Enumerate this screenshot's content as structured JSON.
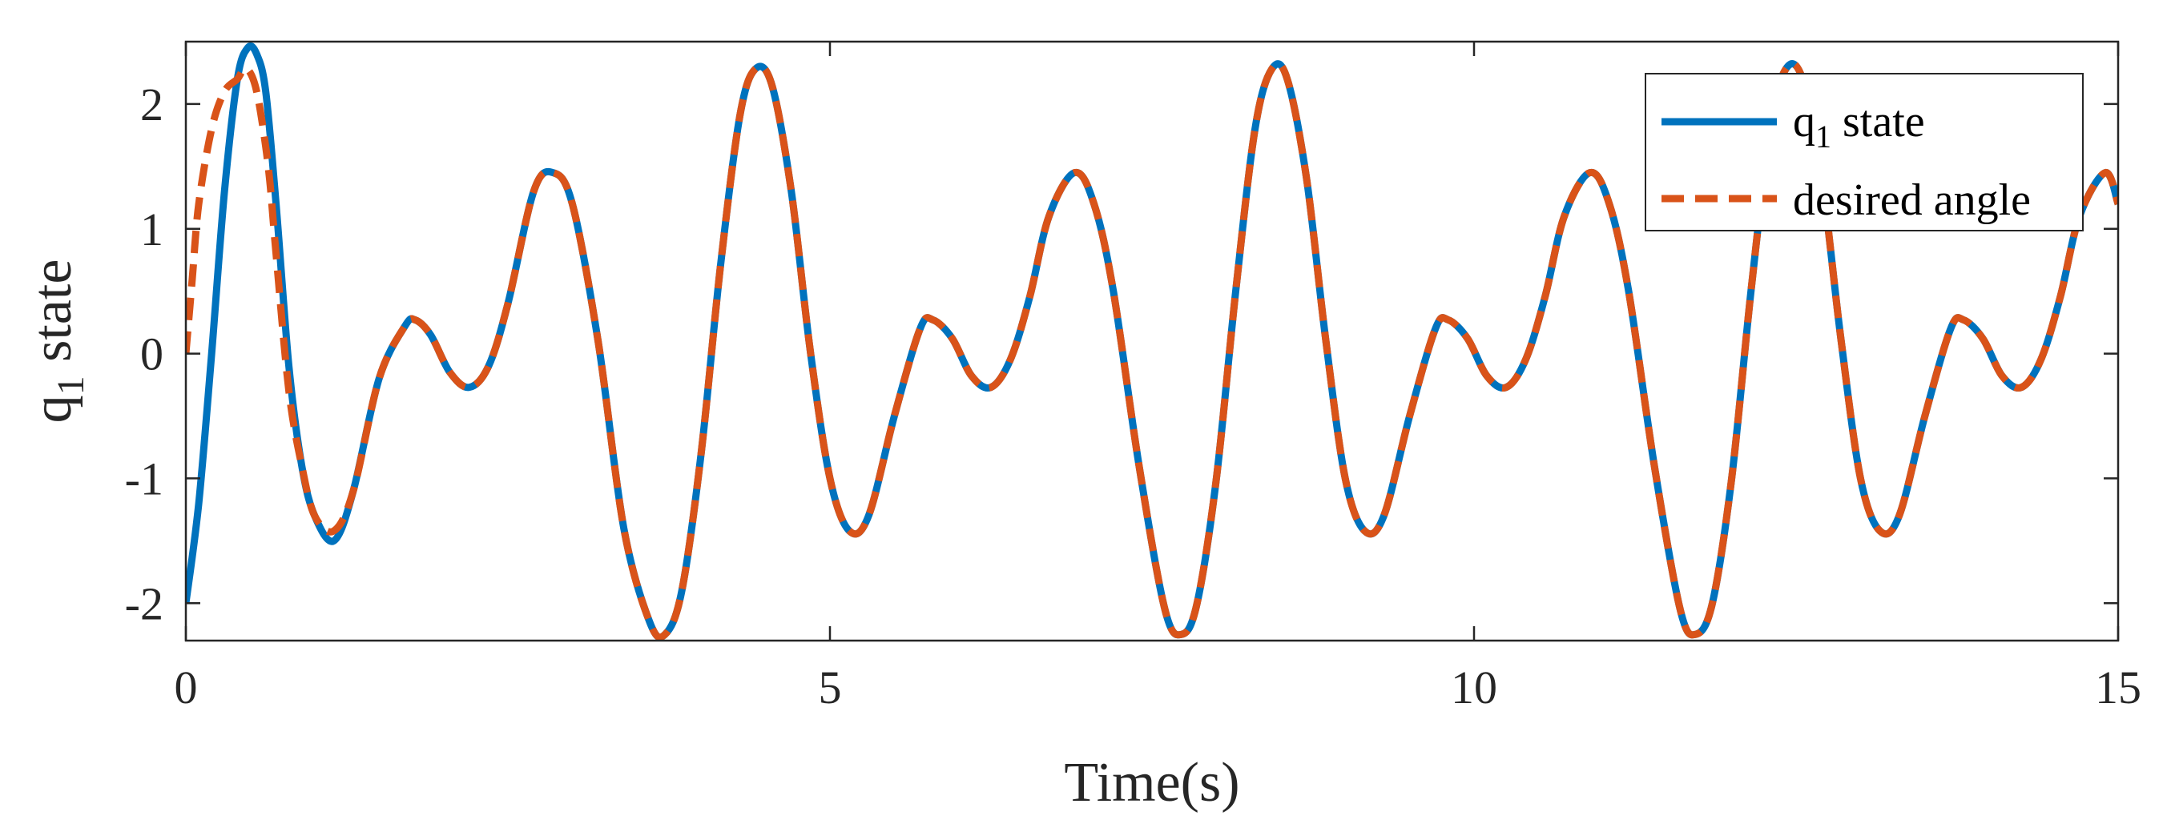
{
  "chart_data": {
    "type": "line",
    "xlabel": "Time(s)",
    "ylabel": {
      "main": "q",
      "sub": "1",
      "rest": " state"
    },
    "xlim": [
      0,
      15
    ],
    "ylim": [
      -2.3,
      2.5
    ],
    "xticks": [
      0,
      5,
      10,
      15
    ],
    "yticks": [
      -2,
      -1,
      0,
      1,
      2
    ],
    "grid": false,
    "legend_position": "top-right",
    "series": [
      {
        "key": "q1",
        "legend": {
          "main": "q",
          "sub": "1",
          "rest": " state"
        },
        "color": "#0072BD",
        "style": "solid",
        "x": [
          0,
          0.1,
          0.2,
          0.3,
          0.4,
          0.48,
          0.55,
          0.62,
          0.7,
          0.8,
          0.9,
          1.0,
          1.15,
          1.3,
          1.5,
          1.7,
          1.78,
          1.9,
          2.05,
          2.2,
          2.35,
          2.5,
          2.7,
          2.85,
          3.0,
          3.2,
          3.4,
          3.6,
          3.72,
          3.85,
          4.0,
          4.15,
          4.3,
          4.42,
          4.55,
          4.7,
          4.85,
          5.0,
          5.15,
          5.3,
          5.5,
          5.7,
          5.8,
          5.95,
          6.1,
          6.25,
          6.4,
          6.55,
          6.7,
          6.9,
          7.05,
          7.2,
          7.4,
          7.6,
          7.73,
          7.85,
          8.0,
          8.15,
          8.3,
          8.43,
          8.55,
          8.7,
          8.85,
          9.0,
          9.15,
          9.3,
          9.5,
          9.7,
          9.8,
          9.95,
          10.1,
          10.25,
          10.4,
          10.55,
          10.7,
          10.9,
          11.05,
          11.2,
          11.4,
          11.6,
          11.72,
          11.85,
          12.0,
          12.15,
          12.3,
          12.42,
          12.55,
          12.7,
          12.85,
          13.0,
          13.15,
          13.3,
          13.5,
          13.7,
          13.8,
          13.95,
          14.1,
          14.25,
          14.4,
          14.55,
          14.7,
          14.9,
          15.0
        ],
        "y": [
          -2.0,
          -1.2,
          0.0,
          1.3,
          2.2,
          2.45,
          2.4,
          2.1,
          1.2,
          -0.1,
          -0.9,
          -1.3,
          -1.5,
          -1.1,
          -0.2,
          0.22,
          0.27,
          0.15,
          -0.15,
          -0.27,
          -0.1,
          0.4,
          1.3,
          1.45,
          1.2,
          0.1,
          -1.4,
          -2.15,
          -2.25,
          -1.9,
          -0.8,
          0.7,
          1.9,
          2.28,
          2.15,
          1.3,
          0.0,
          -1.0,
          -1.42,
          -1.3,
          -0.5,
          0.2,
          0.27,
          0.12,
          -0.18,
          -0.27,
          -0.05,
          0.45,
          1.1,
          1.45,
          1.2,
          0.5,
          -0.9,
          -2.05,
          -2.25,
          -2.0,
          -1.0,
          0.5,
          1.8,
          2.28,
          2.2,
          1.4,
          0.1,
          -1.0,
          -1.42,
          -1.3,
          -0.5,
          0.2,
          0.27,
          0.12,
          -0.18,
          -0.27,
          -0.05,
          0.45,
          1.1,
          1.45,
          1.2,
          0.5,
          -0.9,
          -2.05,
          -2.25,
          -2.0,
          -1.0,
          0.5,
          1.8,
          2.28,
          2.2,
          1.4,
          0.1,
          -1.0,
          -1.42,
          -1.3,
          -0.5,
          0.2,
          0.27,
          0.12,
          -0.18,
          -0.27,
          -0.05,
          0.45,
          1.1,
          1.45,
          1.2
        ]
      },
      {
        "key": "desired",
        "legend": {
          "main": "desired angle",
          "sub": "",
          "rest": ""
        },
        "color": "#D95319",
        "style": "dashed",
        "x": [
          0,
          0.05,
          0.1,
          0.2,
          0.3,
          0.4,
          0.45,
          0.5,
          0.55,
          0.6,
          0.65,
          0.7,
          0.8,
          0.9,
          1.0,
          1.15,
          1.3,
          1.5,
          1.7,
          1.78,
          1.9,
          2.05,
          2.2,
          2.35,
          2.5,
          2.7,
          2.85,
          3.0,
          3.2,
          3.4,
          3.6,
          3.72,
          3.85,
          4.0,
          4.15,
          4.3,
          4.42,
          4.55,
          4.7,
          4.85,
          5.0,
          5.15,
          5.3,
          5.5,
          5.7,
          5.8,
          5.95,
          6.1,
          6.25,
          6.4,
          6.55,
          6.7,
          6.9,
          7.05,
          7.2,
          7.4,
          7.6,
          7.73,
          7.85,
          8.0,
          8.15,
          8.3,
          8.43,
          8.55,
          8.7,
          8.85,
          9.0,
          9.15,
          9.3,
          9.5,
          9.7,
          9.8,
          9.95,
          10.1,
          10.25,
          10.4,
          10.55,
          10.7,
          10.9,
          11.05,
          11.2,
          11.4,
          11.6,
          11.72,
          11.85,
          12.0,
          12.15,
          12.3,
          12.42,
          12.55,
          12.7,
          12.85,
          13.0,
          13.15,
          13.3,
          13.5,
          13.7,
          13.8,
          13.95,
          14.1,
          14.25,
          14.4,
          14.55,
          14.7,
          14.9,
          15.0
        ],
        "y": [
          0.0,
          0.6,
          1.2,
          1.8,
          2.1,
          2.2,
          2.28,
          2.25,
          2.1,
          1.8,
          1.4,
          0.8,
          -0.3,
          -0.9,
          -1.3,
          -1.42,
          -1.1,
          -0.2,
          0.22,
          0.27,
          0.15,
          -0.15,
          -0.27,
          -0.1,
          0.4,
          1.3,
          1.45,
          1.2,
          0.1,
          -1.4,
          -2.15,
          -2.25,
          -1.9,
          -0.8,
          0.7,
          1.9,
          2.28,
          2.15,
          1.3,
          0.0,
          -1.0,
          -1.42,
          -1.3,
          -0.5,
          0.2,
          0.27,
          0.12,
          -0.18,
          -0.27,
          -0.05,
          0.45,
          1.1,
          1.45,
          1.2,
          0.5,
          -0.9,
          -2.05,
          -2.25,
          -2.0,
          -1.0,
          0.5,
          1.8,
          2.28,
          2.2,
          1.4,
          0.1,
          -1.0,
          -1.42,
          -1.3,
          -0.5,
          0.2,
          0.27,
          0.12,
          -0.18,
          -0.27,
          -0.05,
          0.45,
          1.1,
          1.45,
          1.2,
          0.5,
          -0.9,
          -2.05,
          -2.25,
          -2.0,
          -1.0,
          0.5,
          1.8,
          2.28,
          2.2,
          1.4,
          0.1,
          -1.0,
          -1.42,
          -1.3,
          -0.5,
          0.2,
          0.27,
          0.12,
          -0.18,
          -0.27,
          -0.05,
          0.45,
          1.1,
          1.45,
          1.2
        ]
      }
    ]
  }
}
